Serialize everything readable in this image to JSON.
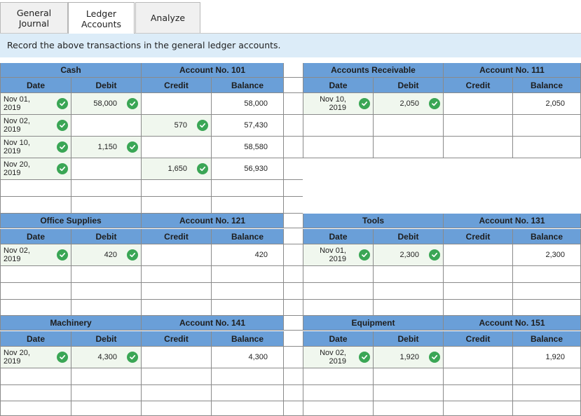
{
  "tabs": [
    {
      "label": "General\nJournal",
      "active": false
    },
    {
      "label": "Ledger\nAccounts",
      "active": true
    },
    {
      "label": "Analyze",
      "active": false
    }
  ],
  "instruction": "Record the above transactions in the general ledger accounts.",
  "column_headers": {
    "date": "Date",
    "debit": "Debit",
    "credit": "Credit",
    "balance": "Balance"
  },
  "accounts": {
    "cash": {
      "name": "Cash",
      "number": "Account No. 101",
      "rows": [
        {
          "date": "Nov 01,\n2019",
          "debit": "58,000",
          "credit": "",
          "balance": "58,000"
        },
        {
          "date": "Nov 02,\n2019",
          "debit": "",
          "credit": "570",
          "balance": "57,430"
        },
        {
          "date": "Nov 10,\n2019",
          "debit": "1,150",
          "credit": "",
          "balance": "58,580"
        },
        {
          "date": "Nov 20,\n2019",
          "debit": "",
          "credit": "1,650",
          "balance": "56,930"
        }
      ]
    },
    "ar": {
      "name": "Accounts Receivable",
      "number": "Account No. 111",
      "rows": [
        {
          "date": "Nov 10,\n2019",
          "debit": "2,050",
          "credit": "",
          "balance": "2,050"
        }
      ]
    },
    "office_supplies": {
      "name": "Office Supplies",
      "number": "Account No. 121",
      "rows": [
        {
          "date": "Nov 02,\n2019",
          "debit": "420",
          "credit": "",
          "balance": "420"
        }
      ]
    },
    "tools": {
      "name": "Tools",
      "number": "Account No. 131",
      "rows": [
        {
          "date": "Nov 01,\n2019",
          "debit": "2,300",
          "credit": "",
          "balance": "2,300"
        }
      ]
    },
    "machinery": {
      "name": "Machinery",
      "number": "Account No. 141",
      "rows": [
        {
          "date": "Nov 20,\n2019",
          "debit": "4,300",
          "credit": "",
          "balance": "4,300"
        }
      ]
    },
    "equipment": {
      "name": "Equipment",
      "number": "Account No. 151",
      "rows": [
        {
          "date": "Nov 02,\n2019",
          "debit": "1,920",
          "credit": "",
          "balance": "1,920"
        }
      ]
    }
  },
  "colors": {
    "header": "#6a9fd8",
    "check": "#3aa655",
    "instruction_bg": "#dcecf8"
  },
  "icons": {
    "check": "check-circle-icon"
  }
}
